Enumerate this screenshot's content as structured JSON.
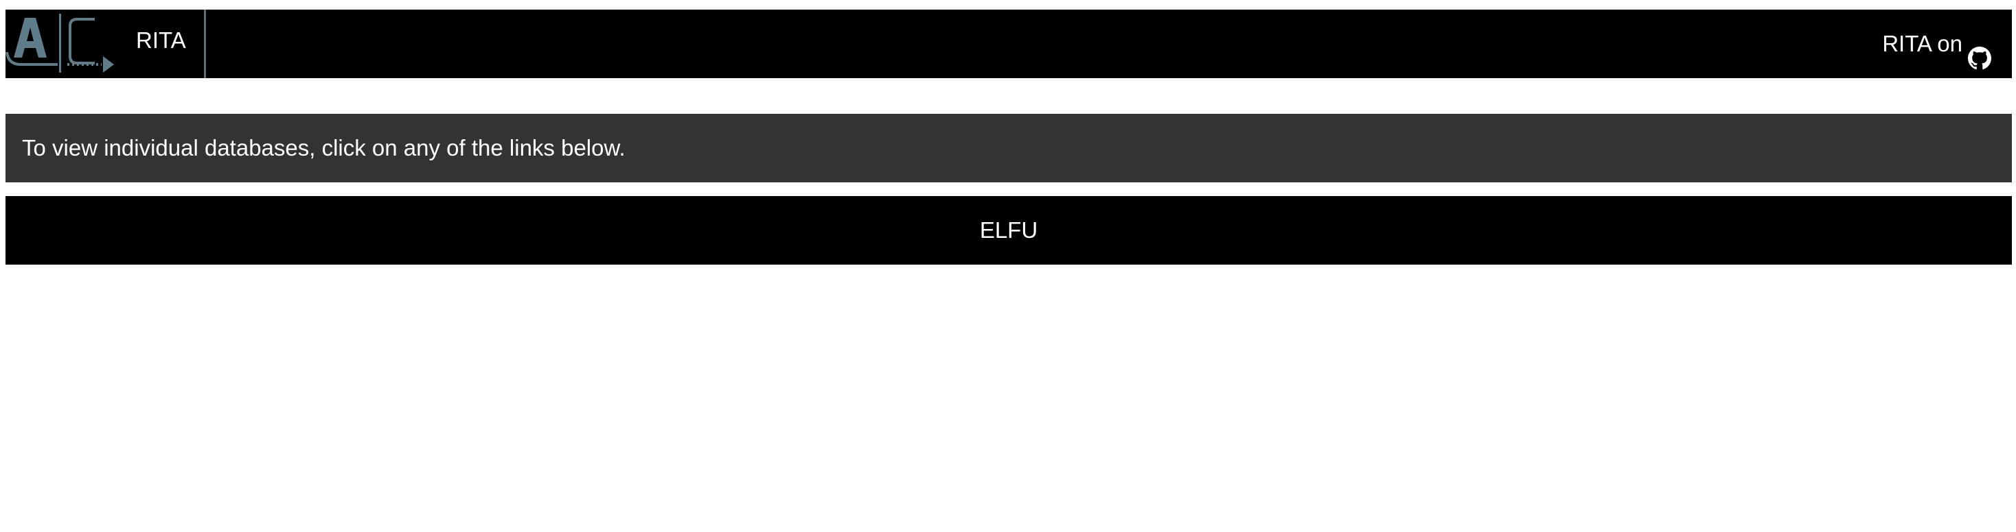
{
  "navbar": {
    "logo_icon": "ac-logo-icon",
    "brand": "RITA",
    "github_text": "RITA on",
    "github_icon": "github-icon"
  },
  "info": {
    "message": "To view individual databases, click on any of the links below."
  },
  "databases": [
    {
      "name": "ELFU"
    }
  ],
  "colors": {
    "navbar_bg": "#000000",
    "info_bg": "#333333",
    "logo_accent": "#5f7c8a",
    "text": "#ffffff"
  }
}
